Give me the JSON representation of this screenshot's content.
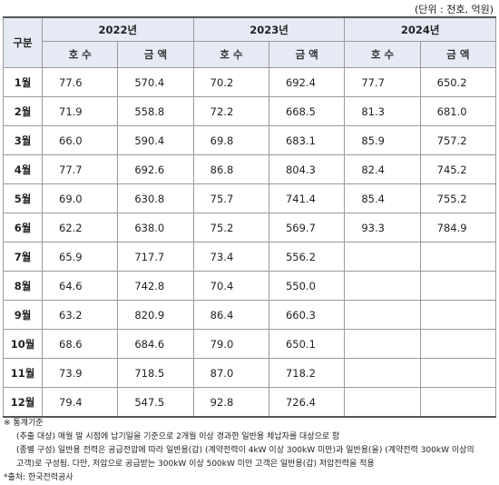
{
  "unit": "(단위 : 천호, 억원)",
  "table": {
    "corner": "구분",
    "years": [
      "2022년",
      "2023년",
      "2024년"
    ],
    "subheaders": [
      "호 수",
      "금 액"
    ],
    "rows": [
      {
        "month": "1월",
        "values": [
          "77.6",
          "570.4",
          "70.2",
          "692.4",
          "77.7",
          "650.2"
        ]
      },
      {
        "month": "2월",
        "values": [
          "71.9",
          "558.8",
          "72.2",
          "668.5",
          "81.3",
          "681.0"
        ]
      },
      {
        "month": "3월",
        "values": [
          "66.0",
          "590.4",
          "69.8",
          "683.1",
          "85.9",
          "757.2"
        ]
      },
      {
        "month": "4월",
        "values": [
          "77.7",
          "692.6",
          "86.8",
          "804.3",
          "82.4",
          "745.2"
        ]
      },
      {
        "month": "5월",
        "values": [
          "69.0",
          "630.8",
          "75.7",
          "741.4",
          "85.4",
          "755.2"
        ]
      },
      {
        "month": "6월",
        "values": [
          "62.2",
          "638.0",
          "75.2",
          "569.7",
          "93.3",
          "784.9"
        ]
      },
      {
        "month": "7월",
        "values": [
          "65.9",
          "717.7",
          "73.4",
          "556.2",
          null,
          null
        ]
      },
      {
        "month": "8월",
        "values": [
          "64.6",
          "742.8",
          "70.4",
          "550.0",
          null,
          null
        ]
      },
      {
        "month": "9월",
        "values": [
          "63.2",
          "820.9",
          "86.4",
          "660.3",
          null,
          null
        ]
      },
      {
        "month": "10월",
        "values": [
          "68.6",
          "684.6",
          "79.0",
          "650.1",
          null,
          null
        ]
      },
      {
        "month": "11월",
        "values": [
          "73.9",
          "718.5",
          "87.0",
          "718.2",
          null,
          null
        ]
      },
      {
        "month": "12월",
        "values": [
          "79.4",
          "547.5",
          "92.8",
          "726.4",
          null,
          null
        ]
      }
    ]
  },
  "notes": {
    "heading": "※ 통계기준",
    "lines": [
      "(추출 대상) 매월 말 시점에 납기일을 기준으로 2개월 이상 경과한 일반용 체납자를 대상으로 함",
      "(종별 구성) 일반용 전력은 공급전압에 따라 일반용(갑) (계약전력이 4kW 이상 300kW 미만)과 일반용(을) (계약전력 300kW 이상의",
      "고객)로 구성됨. 다만, 저압으로 공급받는 300kW 이상 500kW 미만 고객은 일반용(갑) 저압전력을 적용"
    ],
    "source": "*출처: 한국전력공사"
  }
}
